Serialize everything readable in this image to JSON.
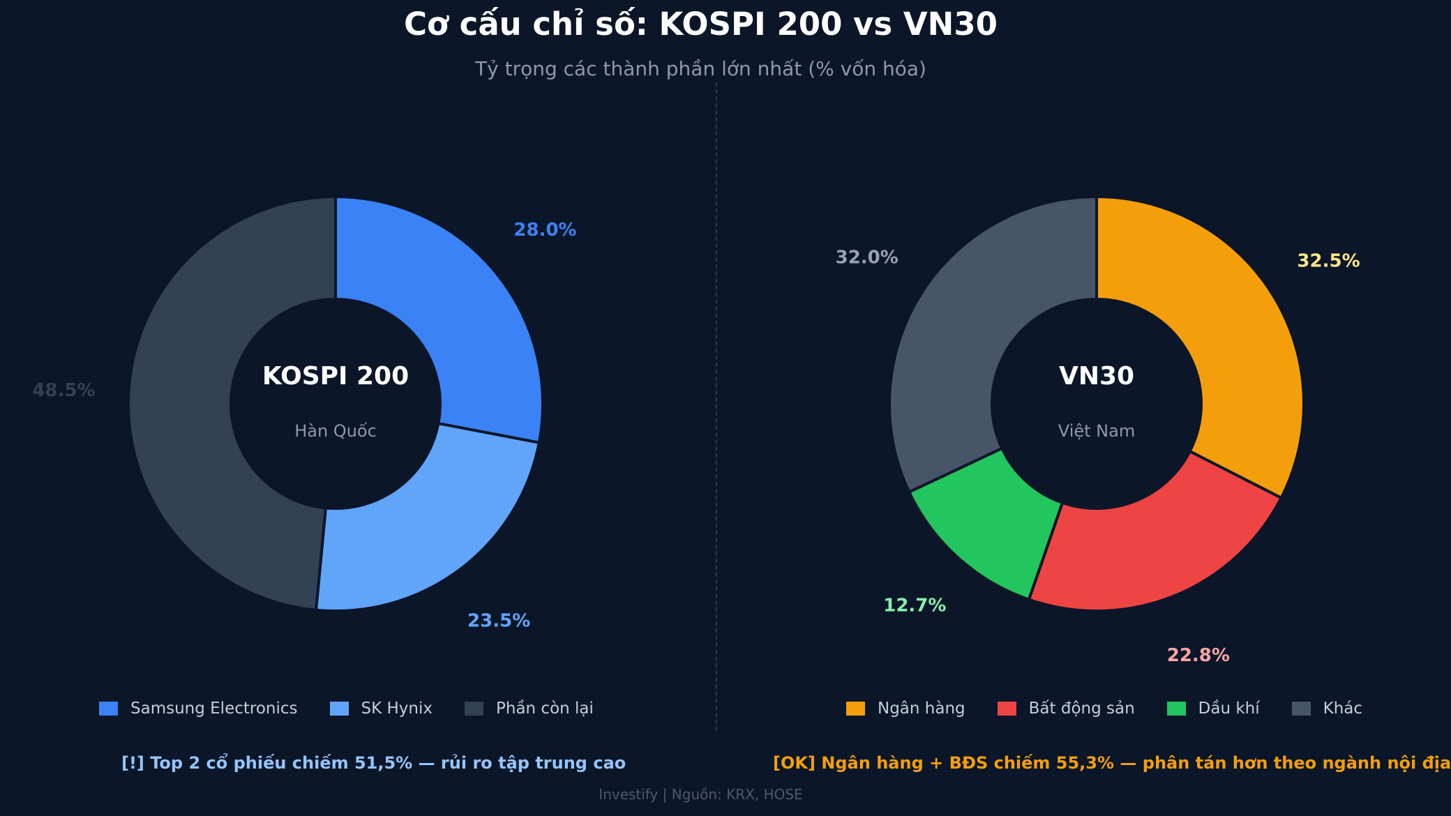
{
  "title": "Cơ cấu chỉ số: KOSPI 200 vs VN30",
  "subtitle": "Tỷ trọng các thành phần lớn nhất (% vốn hóa)",
  "chart_data": [
    {
      "type": "pie",
      "donut": true,
      "center_title": "KOSPI 200",
      "center_subtitle": "Hàn Quốc",
      "categories": [
        "Samsung Electronics",
        "SK Hynix",
        "Phần còn lại"
      ],
      "values": [
        28.0,
        23.5,
        48.5
      ],
      "labels": [
        "28.0%",
        "23.5%",
        "48.5%"
      ],
      "colors": [
        "#3b82f6",
        "#60a5fa",
        "#334155"
      ],
      "label_colors": [
        "#3b82f6",
        "#60a5fa",
        "#334155"
      ],
      "legend_position": "bottom"
    },
    {
      "type": "pie",
      "donut": true,
      "center_title": "VN30",
      "center_subtitle": "Việt Nam",
      "categories": [
        "Ngân hàng",
        "Bất động sản",
        "Dầu khí",
        "Khác"
      ],
      "values": [
        32.5,
        22.8,
        12.7,
        32.0
      ],
      "labels": [
        "32.5%",
        "22.8%",
        "12.7%",
        "32.0%"
      ],
      "colors": [
        "#f59e0b",
        "#ef4444",
        "#22c55e",
        "#475569"
      ],
      "label_colors": [
        "#fde68a",
        "#fca5a5",
        "#86efac",
        "#94a3b8"
      ],
      "legend_position": "bottom"
    }
  ],
  "notes": {
    "left": "[!] Top 2 cổ phiếu chiếm 51,5% — rủi ro tập trung cao",
    "left_color": "#93c5fd",
    "right": "[OK] Ngân hàng + BĐS chiếm 55,3% — phân tán hơn theo ngành nội địa",
    "right_color": "#f59e0b"
  },
  "footer": "Investify  |  Nguồn: KRX, HOSE",
  "colors": {
    "background": "#0b1628",
    "center_title": "#ffffff",
    "center_subtitle": "#8a9ab0"
  }
}
